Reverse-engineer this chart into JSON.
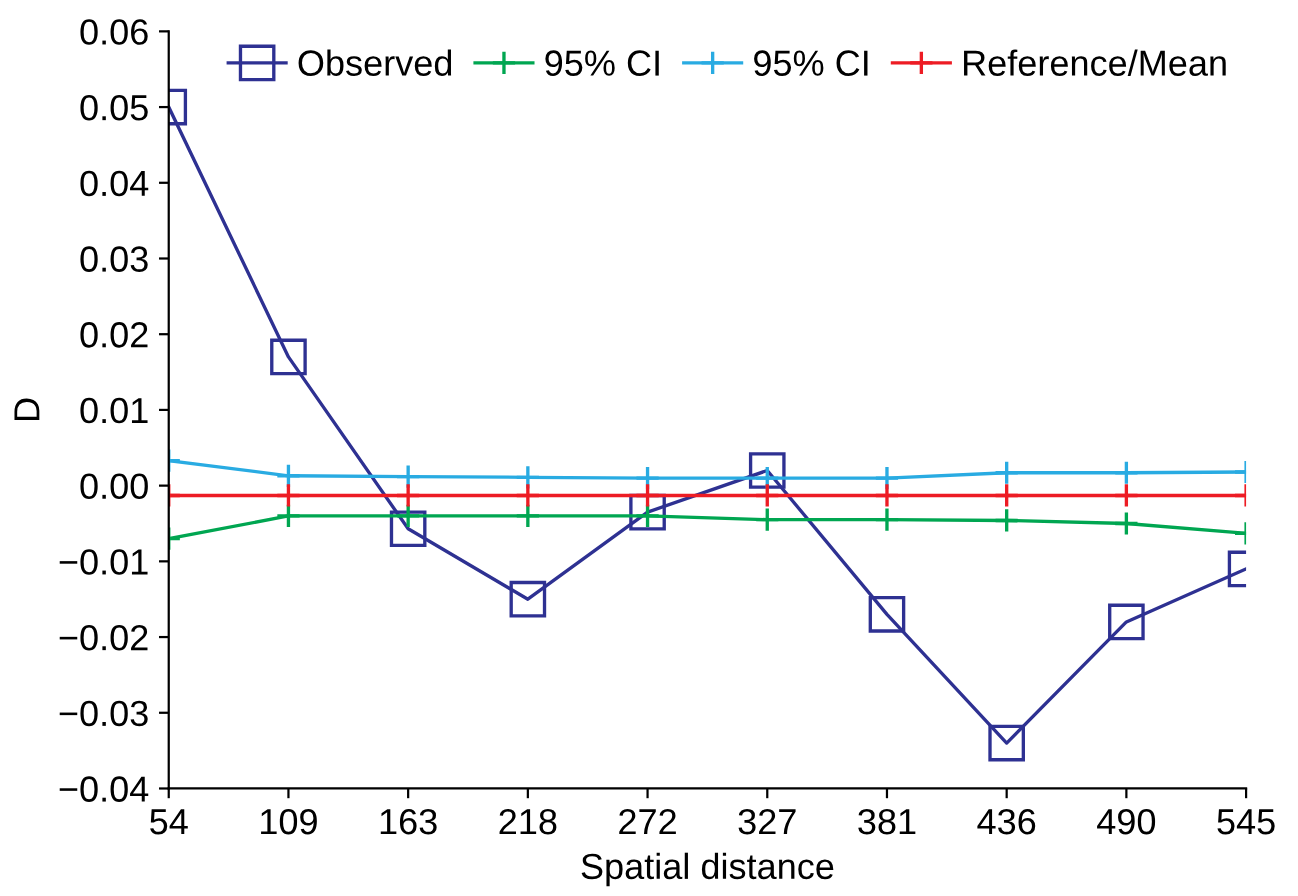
{
  "chart_data": {
    "type": "line",
    "xlabel": "Spatial distance",
    "ylabel": "D",
    "categories": [
      "54",
      "109",
      "163",
      "218",
      "272",
      "327",
      "381",
      "436",
      "490",
      "545"
    ],
    "series": [
      {
        "name": "Observed",
        "color": "#2e3192",
        "marker": "square",
        "values": [
          0.05,
          0.017,
          -0.0057,
          -0.015,
          -0.0035,
          0.002,
          -0.017,
          -0.034,
          -0.018,
          -0.011
        ]
      },
      {
        "name": "95% CI",
        "color": "#00a651",
        "marker": "cross",
        "values": [
          -0.007,
          -0.004,
          -0.004,
          -0.004,
          -0.004,
          -0.0045,
          -0.0045,
          -0.0046,
          -0.005,
          -0.0063
        ]
      },
      {
        "name": "95% CI",
        "color": "#29abe2",
        "marker": "cross",
        "values": [
          0.0033,
          0.0013,
          0.0012,
          0.0011,
          0.001,
          0.001,
          0.001,
          0.0017,
          0.0017,
          0.0018
        ]
      },
      {
        "name": "Reference/Mean",
        "color": "#ed1c24",
        "marker": "cross",
        "values": [
          -0.0013,
          -0.0013,
          -0.0013,
          -0.0013,
          -0.0013,
          -0.0013,
          -0.0013,
          -0.0013,
          -0.0013,
          -0.0013
        ]
      }
    ],
    "ylim": [
      -0.04,
      0.06
    ],
    "yticks": [
      {
        "value": -0.04,
        "label": "−0.04"
      },
      {
        "value": -0.03,
        "label": "−0.03"
      },
      {
        "value": -0.02,
        "label": "−0.02"
      },
      {
        "value": -0.01,
        "label": "−0.01"
      },
      {
        "value": 0,
        "label": "0.00"
      },
      {
        "value": 0.01,
        "label": "0.01"
      },
      {
        "value": 0.02,
        "label": "0.02"
      },
      {
        "value": 0.03,
        "label": "0.03"
      },
      {
        "value": 0.04,
        "label": "0.04"
      },
      {
        "value": 0.05,
        "label": "0.05"
      },
      {
        "value": 0.06,
        "label": "0.06"
      }
    ],
    "legend": "top",
    "grid": false,
    "line_style": "solid"
  }
}
